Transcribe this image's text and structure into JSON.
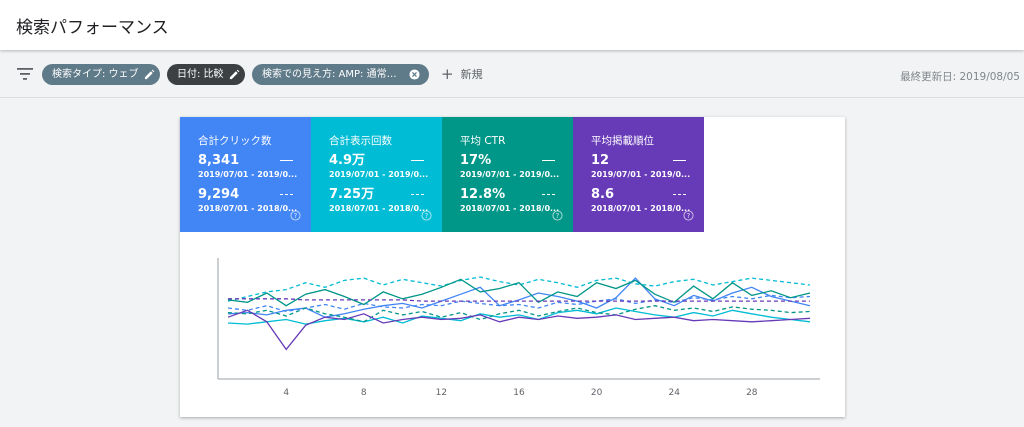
{
  "header": {
    "title": "検索パフォーマンス"
  },
  "toolbar": {
    "filters": [
      {
        "label": "検索タイプ: ウェブ"
      },
      {
        "label": "日付: 比較"
      },
      {
        "label": "検索での見え方: AMP: 通常の..."
      }
    ],
    "add_new_label": "新規",
    "last_updated": "最終更新日: 2019/08/05"
  },
  "metrics": [
    {
      "label": "合計クリック数",
      "current_value": "8,341",
      "current_range": "2019/07/01 - 2019/0...",
      "previous_value": "9,294",
      "previous_range": "2018/07/01 - 2018/0...",
      "color": "#4285f4"
    },
    {
      "label": "合計表示回数",
      "current_value": "4.9万",
      "current_range": "2019/07/01 - 2019/0...",
      "previous_value": "7.25万",
      "previous_range": "2018/07/01 - 2018/0...",
      "color": "#00bcd4"
    },
    {
      "label": "平均 CTR",
      "current_value": "17%",
      "current_range": "2019/07/01 - 2019/0...",
      "previous_value": "12.8%",
      "previous_range": "2018/07/01 - 2018/0...",
      "color": "#009688"
    },
    {
      "label": "平均掲載順位",
      "current_value": "12",
      "current_range": "2019/07/01 - 2019/0...",
      "previous_value": "8.6",
      "previous_range": "2018/07/01 - 2018/0...",
      "color": "#673ab7"
    }
  ],
  "chart_data": {
    "type": "line",
    "x_ticks": [
      "4",
      "8",
      "12",
      "16",
      "20",
      "24",
      "28"
    ],
    "x_range": [
      1,
      31
    ],
    "y_scale": "relative (0 = bottom, 1 = top of plot)",
    "series": [
      {
        "color": "#4285f4",
        "style": "solid",
        "values": [
          0.55,
          0.56,
          0.54,
          0.58,
          0.6,
          0.52,
          0.55,
          0.59,
          0.62,
          0.64,
          0.6,
          0.66,
          0.72,
          0.78,
          0.62,
          0.67,
          0.73,
          0.7,
          0.66,
          0.6,
          0.69,
          0.86,
          0.68,
          0.62,
          0.71,
          0.66,
          0.73,
          0.78,
          0.7,
          0.66,
          0.62
        ]
      },
      {
        "color": "#4285f4",
        "style": "dashed",
        "values": [
          0.6,
          0.58,
          0.62,
          0.57,
          0.6,
          0.63,
          0.59,
          0.64,
          0.61,
          0.6,
          0.63,
          0.62,
          0.66,
          0.64,
          0.62,
          0.63,
          0.6,
          0.65,
          0.63,
          0.66,
          0.68,
          0.64,
          0.67,
          0.65,
          0.69,
          0.67,
          0.7,
          0.68,
          0.71,
          0.69,
          0.7
        ]
      },
      {
        "color": "#00bcd4",
        "style": "solid",
        "values": [
          0.47,
          0.46,
          0.48,
          0.5,
          0.46,
          0.49,
          0.51,
          0.48,
          0.52,
          0.47,
          0.53,
          0.51,
          0.49,
          0.55,
          0.52,
          0.54,
          0.5,
          0.56,
          0.58,
          0.55,
          0.6,
          0.57,
          0.54,
          0.52,
          0.56,
          0.53,
          0.58,
          0.55,
          0.52,
          0.5,
          0.48
        ]
      },
      {
        "color": "#00bcd4",
        "style": "dashed",
        "values": [
          0.66,
          0.7,
          0.74,
          0.76,
          0.82,
          0.78,
          0.84,
          0.86,
          0.8,
          0.85,
          0.82,
          0.79,
          0.84,
          0.87,
          0.83,
          0.8,
          0.85,
          0.82,
          0.78,
          0.84,
          0.86,
          0.81,
          0.79,
          0.83,
          0.85,
          0.8,
          0.83,
          0.86,
          0.84,
          0.82,
          0.8
        ]
      },
      {
        "color": "#009688",
        "style": "solid",
        "values": [
          0.67,
          0.65,
          0.73,
          0.62,
          0.72,
          0.76,
          0.7,
          0.63,
          0.74,
          0.68,
          0.72,
          0.78,
          0.85,
          0.74,
          0.77,
          0.82,
          0.65,
          0.74,
          0.7,
          0.82,
          0.77,
          0.84,
          0.72,
          0.65,
          0.79,
          0.68,
          0.82,
          0.71,
          0.75,
          0.69,
          0.73
        ]
      },
      {
        "color": "#009688",
        "style": "dashed",
        "values": [
          0.56,
          0.55,
          0.58,
          0.53,
          0.6,
          0.55,
          0.52,
          0.48,
          0.58,
          0.54,
          0.57,
          0.52,
          0.56,
          0.5,
          0.55,
          0.58,
          0.53,
          0.57,
          0.6,
          0.56,
          0.54,
          0.59,
          0.62,
          0.58,
          0.6,
          0.57,
          0.61,
          0.59,
          0.58,
          0.56,
          0.57
        ]
      },
      {
        "color": "#673ab7",
        "style": "solid",
        "values": [
          0.52,
          0.58,
          0.48,
          0.24,
          0.45,
          0.52,
          0.5,
          0.55,
          0.47,
          0.5,
          0.52,
          0.5,
          0.51,
          0.54,
          0.48,
          0.52,
          0.5,
          0.53,
          0.51,
          0.52,
          0.54,
          0.5,
          0.51,
          0.52,
          0.49,
          0.5,
          0.49,
          0.48,
          0.49,
          0.5,
          0.51
        ]
      },
      {
        "color": "#673ab7",
        "style": "dashed",
        "values": [
          0.68,
          0.68,
          0.68,
          0.68,
          0.67,
          0.67,
          0.67,
          0.67,
          0.67,
          0.67,
          0.66,
          0.66,
          0.66,
          0.66,
          0.66,
          0.66,
          0.66,
          0.66,
          0.66,
          0.66,
          0.66,
          0.66,
          0.66,
          0.66,
          0.66,
          0.66,
          0.66,
          0.66,
          0.66,
          0.66,
          0.66
        ]
      }
    ]
  }
}
